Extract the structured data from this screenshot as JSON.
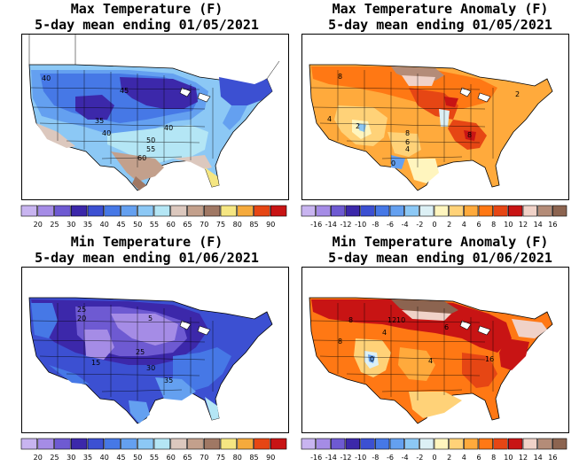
{
  "panels": [
    {
      "id": "max-temp",
      "title_line1": "Max Temperature (F)",
      "title_line2": "5-day mean ending 01/05/2021",
      "scale_labels": [
        "20",
        "25",
        "30",
        "35",
        "40",
        "45",
        "50",
        "55",
        "60",
        "65",
        "70",
        "75",
        "80",
        "85",
        "90"
      ],
      "scale_colors": [
        "#c8b4f0",
        "#a58ce6",
        "#6e5ad2",
        "#3c28aa",
        "#3c50d2",
        "#4678e6",
        "#64a0f0",
        "#8cc8f5",
        "#b4e6f5",
        "#dcc8be",
        "#c3a08c",
        "#a07864",
        "#f5e682",
        "#f5aa3c",
        "#e64614",
        "#c81414"
      ],
      "map_labels": [
        "40",
        "45",
        "35",
        "40",
        "40",
        "50",
        "55",
        "60"
      ],
      "chart_data": {
        "type": "heatmap",
        "title": "Max Temperature (F)",
        "subtitle": "5-day mean ending 01/05/2021",
        "scale_ticks": [
          20,
          25,
          30,
          35,
          40,
          45,
          50,
          55,
          60,
          65,
          70,
          75,
          80,
          85,
          90
        ],
        "contour_labels": [
          40,
          45,
          35,
          40,
          40,
          50,
          55,
          60
        ]
      }
    },
    {
      "id": "max-anom",
      "title_line1": "Max Temperature Anomaly (F)",
      "title_line2": "5-day mean ending 01/05/2021",
      "scale_labels": [
        "-16",
        "-14",
        "-12",
        "-10",
        "-8",
        "-6",
        "-4",
        "-2",
        "0",
        "2",
        "4",
        "6",
        "8",
        "10",
        "12",
        "14",
        "16"
      ],
      "scale_colors": [
        "#c8b4f0",
        "#a58ce6",
        "#6e5ad2",
        "#3c28aa",
        "#3c50d2",
        "#4678e6",
        "#64a0f0",
        "#8cc8f5",
        "#dcf0f5",
        "#fff5be",
        "#ffd278",
        "#ffaa3c",
        "#ff7814",
        "#e64614",
        "#c81414",
        "#f0d2c8",
        "#b48c78",
        "#8c6450"
      ],
      "map_labels": [
        "8",
        "4",
        "2",
        "0",
        "8",
        "6",
        "4",
        "8",
        "2"
      ],
      "chart_data": {
        "type": "heatmap",
        "title": "Max Temperature Anomaly (F)",
        "subtitle": "5-day mean ending 01/05/2021",
        "scale_ticks": [
          -16,
          -14,
          -12,
          -10,
          -8,
          -6,
          -4,
          -2,
          0,
          2,
          4,
          6,
          8,
          10,
          12,
          14,
          16
        ],
        "contour_labels": [
          8,
          4,
          2,
          0,
          8,
          6,
          4,
          8,
          2
        ]
      }
    },
    {
      "id": "min-temp",
      "title_line1": "Min Temperature (F)",
      "title_line2": "5-day mean ending 01/06/2021",
      "scale_labels": [
        "20",
        "25",
        "30",
        "35",
        "40",
        "45",
        "50",
        "55",
        "60",
        "65",
        "70",
        "75",
        "80",
        "85",
        "90"
      ],
      "scale_colors": [
        "#c8b4f0",
        "#a58ce6",
        "#6e5ad2",
        "#3c28aa",
        "#3c50d2",
        "#4678e6",
        "#64a0f0",
        "#8cc8f5",
        "#b4e6f5",
        "#dcc8be",
        "#c3a08c",
        "#a07864",
        "#f5e682",
        "#f5aa3c",
        "#e64614",
        "#c81414"
      ],
      "map_labels": [
        "25",
        "20",
        "5",
        "15",
        "25",
        "30",
        "35"
      ],
      "chart_data": {
        "type": "heatmap",
        "title": "Min Temperature (F)",
        "subtitle": "5-day mean ending 01/06/2021",
        "scale_ticks": [
          20,
          25,
          30,
          35,
          40,
          45,
          50,
          55,
          60,
          65,
          70,
          75,
          80,
          85,
          90
        ],
        "contour_labels": [
          25,
          20,
          5,
          15,
          25,
          30,
          35
        ]
      }
    },
    {
      "id": "min-anom",
      "title_line1": "Min Temperature Anomaly (F)",
      "title_line2": "5-day mean ending 01/06/2021",
      "scale_labels": [
        "-16",
        "-14",
        "-12",
        "-10",
        "-8",
        "-6",
        "-4",
        "-2",
        "0",
        "2",
        "4",
        "6",
        "8",
        "10",
        "12",
        "14",
        "16"
      ],
      "scale_colors": [
        "#c8b4f0",
        "#a58ce6",
        "#6e5ad2",
        "#3c28aa",
        "#3c50d2",
        "#4678e6",
        "#64a0f0",
        "#8cc8f5",
        "#dcf0f5",
        "#fff5be",
        "#ffd278",
        "#ffaa3c",
        "#ff7814",
        "#e64614",
        "#c81414",
        "#f0d2c8",
        "#b48c78",
        "#8c6450"
      ],
      "map_labels": [
        "8",
        "12",
        "10",
        "6",
        "8",
        "4",
        "0",
        "4",
        "16"
      ],
      "chart_data": {
        "type": "heatmap",
        "title": "Min Temperature Anomaly (F)",
        "subtitle": "5-day mean ending 01/06/2021",
        "scale_ticks": [
          -16,
          -14,
          -12,
          -10,
          -8,
          -6,
          -4,
          -2,
          0,
          2,
          4,
          6,
          8,
          10,
          12,
          14,
          16
        ],
        "contour_labels": [
          8,
          12,
          10,
          6,
          8,
          4,
          0,
          4,
          16
        ]
      }
    }
  ]
}
